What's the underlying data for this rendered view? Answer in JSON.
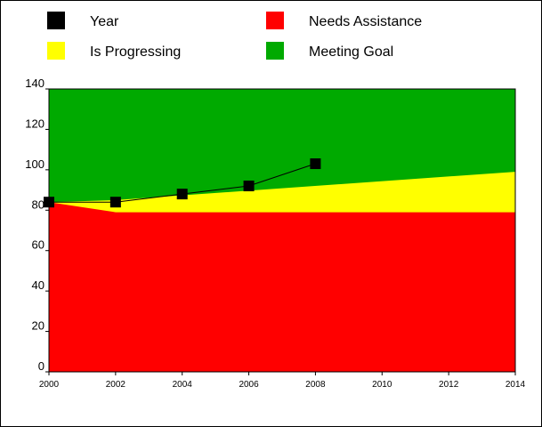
{
  "chart_data": {
    "type": "area",
    "title": "",
    "xlabel": "",
    "ylabel": "",
    "xlim": [
      2000,
      2014
    ],
    "ylim": [
      0,
      140
    ],
    "x_ticks": [
      "2000",
      "2002",
      "2004",
      "2006",
      "2008",
      "2010",
      "2012",
      "2014"
    ],
    "y_ticks": [
      "0",
      "20",
      "40",
      "60",
      "80",
      "100",
      "120",
      "140"
    ],
    "grid": false,
    "legend_position": "top",
    "legend": [
      {
        "label": "Year",
        "color": "#000000"
      },
      {
        "label": "Needs Assistance",
        "color": "#ff0000"
      },
      {
        "label": "Is Progressing",
        "color": "#ffff00"
      },
      {
        "label": "Meeting Goal",
        "color": "#00aa00"
      }
    ],
    "bands": [
      {
        "name": "Needs Assistance",
        "color": "#ff0000",
        "x": [
          2000,
          2002,
          2014
        ],
        "upper": [
          84,
          79,
          79
        ]
      },
      {
        "name": "Is Progressing",
        "color": "#ffff00",
        "x": [
          2000,
          2002,
          2014
        ],
        "upper": [
          84,
          85,
          99
        ]
      },
      {
        "name": "Meeting Goal",
        "color": "#00aa00",
        "x": [
          2000,
          2014
        ],
        "upper": [
          140,
          140
        ]
      }
    ],
    "series": [
      {
        "name": "Year",
        "color": "#000000",
        "x": [
          2000,
          2002,
          2004,
          2006,
          2008
        ],
        "y": [
          84,
          84,
          88,
          92,
          103
        ]
      }
    ]
  }
}
